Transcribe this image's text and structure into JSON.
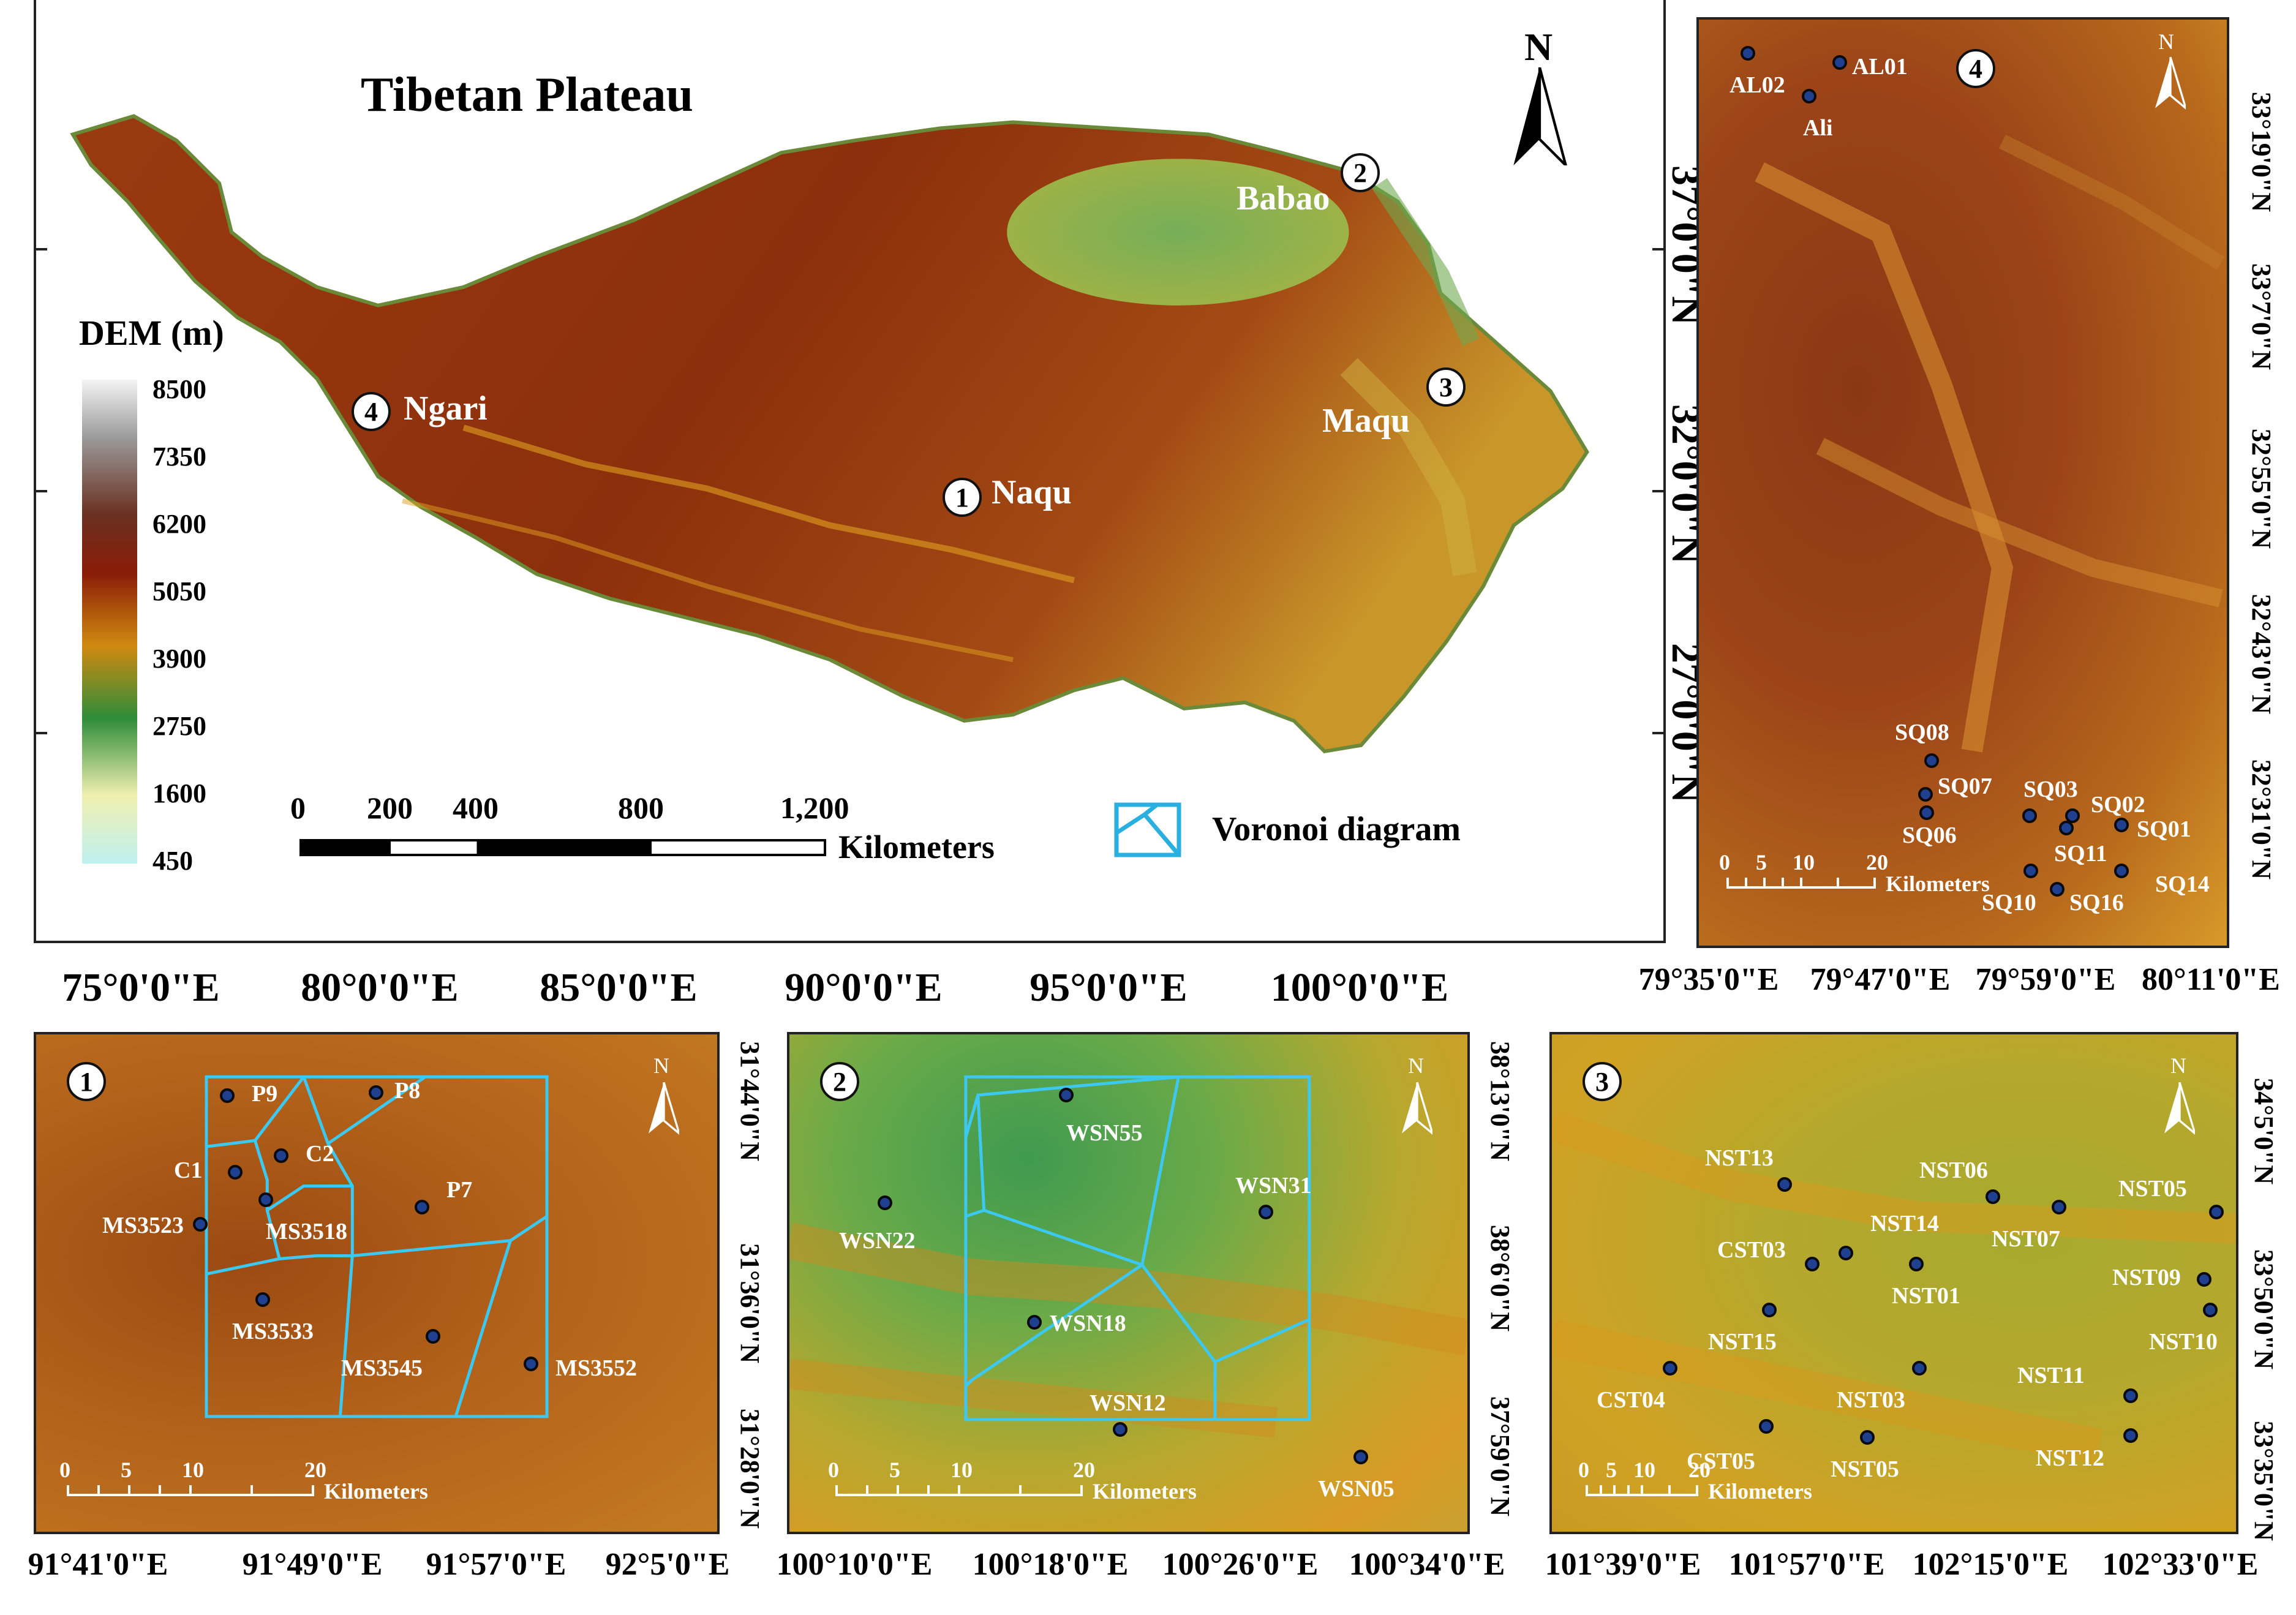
{
  "main_map": {
    "title": "Tibetan Plateau",
    "north": "N",
    "legend_title": "DEM (m)",
    "legend_values": [
      "8500",
      "7350",
      "6200",
      "5050",
      "3900",
      "2750",
      "1600",
      "450"
    ],
    "scale_numbers": [
      "0",
      "200",
      "400",
      "800",
      "1,200"
    ],
    "scale_unit": "Kilometers",
    "voronoi_label": "Voronoi diagram",
    "regions": [
      {
        "num": "1",
        "name": "Naqu"
      },
      {
        "num": "2",
        "name": "Babao"
      },
      {
        "num": "3",
        "name": "Maqu"
      },
      {
        "num": "4",
        "name": "Ngari"
      }
    ],
    "lon_labels": [
      "75°0'0\"E",
      "80°0'0\"E",
      "85°0'0\"E",
      "90°0'0\"E",
      "95°0'0\"E",
      "100°0'0\"E"
    ],
    "lat_labels": [
      "37°0'0\"N",
      "32°0'0\"N",
      "27°0'0\"N"
    ]
  },
  "panel4": {
    "num": "4",
    "north": "N",
    "lon_labels": [
      "79°35'0\"E",
      "79°47'0\"E",
      "79°59'0\"E",
      "80°11'0\"E"
    ],
    "lat_labels": [
      "33°19'0\"N",
      "33°7'0\"N",
      "32°55'0\"N",
      "32°43'0\"N",
      "32°31'0\"N"
    ],
    "scale_numbers": [
      "0",
      "5",
      "10",
      "20"
    ],
    "scale_unit": "Kilometers",
    "sites": [
      "AL02",
      "AL01",
      "Ali",
      "SQ08",
      "SQ07",
      "SQ06",
      "SQ03",
      "SQ02",
      "SQ11",
      "SQ01",
      "SQ10",
      "SQ16",
      "SQ14"
    ]
  },
  "panel1": {
    "num": "1",
    "north": "N",
    "lon_labels": [
      "91°41'0\"E",
      "91°49'0\"E",
      "91°57'0\"E",
      "92°5'0\"E"
    ],
    "lat_labels": [
      "31°44'0\"N",
      "31°36'0\"N",
      "31°28'0\"N"
    ],
    "scale_numbers": [
      "0",
      "5",
      "10",
      "20"
    ],
    "scale_unit": "Kilometers",
    "sites": [
      "P9",
      "P8",
      "C1",
      "C2",
      "P7",
      "MS3523",
      "MS3518",
      "MS3533",
      "MS3545",
      "MS3552"
    ]
  },
  "panel2": {
    "num": "2",
    "north": "N",
    "lon_labels": [
      "100°10'0\"E",
      "100°18'0\"E",
      "100°26'0\"E",
      "100°34'0\"E"
    ],
    "lat_labels": [
      "38°13'0\"N",
      "38°6'0\"N",
      "37°59'0\"N"
    ],
    "scale_numbers": [
      "0",
      "5",
      "10",
      "20"
    ],
    "scale_unit": "Kilometers",
    "sites": [
      "WSN55",
      "WSN22",
      "WSN31",
      "WSN18",
      "WSN12",
      "WSN05"
    ]
  },
  "panel3": {
    "num": "3",
    "north": "N",
    "lon_labels": [
      "101°39'0\"E",
      "101°57'0\"E",
      "102°15'0\"E",
      "102°33'0\"E"
    ],
    "lat_labels": [
      "34°5'0\"N",
      "33°50'0\"N",
      "33°35'0\"N"
    ],
    "scale_numbers": [
      "0",
      "5",
      "10",
      "20"
    ],
    "scale_unit": "Kilometers",
    "sites": [
      "NST13",
      "NST06",
      "NST05",
      "NST14",
      "CST03",
      "NST07",
      "NST09",
      "NST01",
      "NST15",
      "NST10",
      "CST04",
      "NST03",
      "NST11",
      "CST05",
      "NST05",
      "NST12"
    ]
  }
}
